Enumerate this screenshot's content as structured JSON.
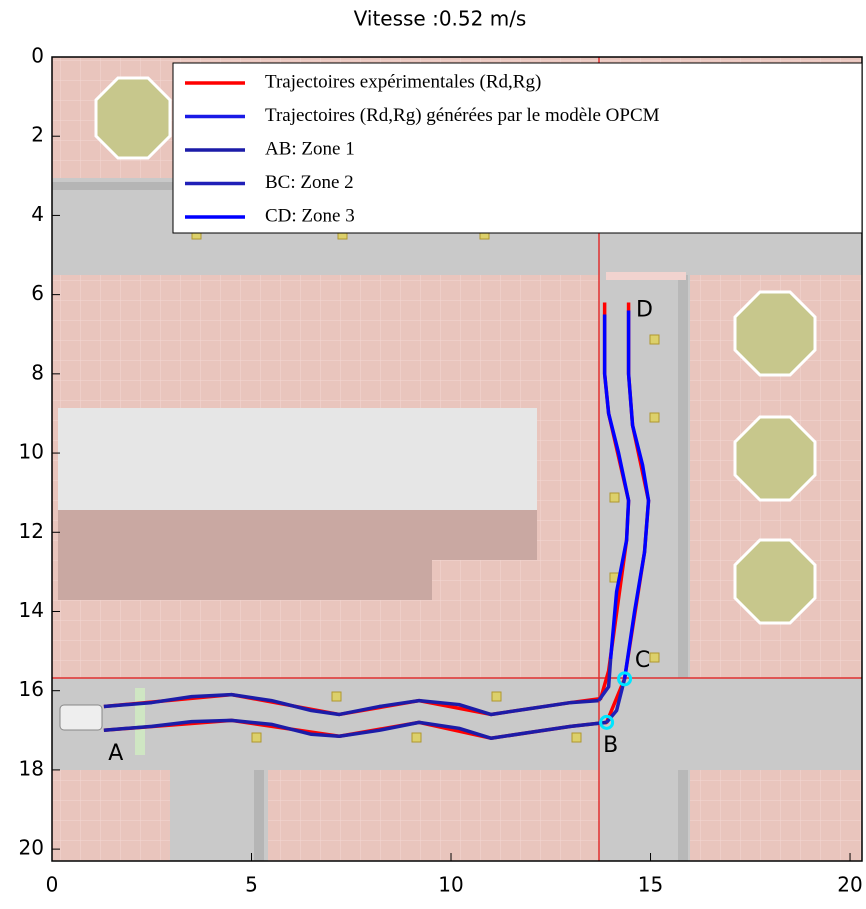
{
  "chart_data": {
    "type": "line",
    "title": "Vitesse :0.52 m/s",
    "xlim": [
      0,
      20.3
    ],
    "ylim": [
      0,
      20.3
    ],
    "y_inverted": true,
    "xticks": [
      0,
      5,
      10,
      15,
      20
    ],
    "yticks": [
      0,
      2,
      4,
      6,
      8,
      10,
      12,
      14,
      16,
      18,
      20
    ],
    "legend": "top-right",
    "series": [
      {
        "name": "Trajectoires expérimentales (Rd,Rg)",
        "color": "#ff0000",
        "lines": [
          {
            "x": [
              1.3,
              4.5,
              7.2,
              9.2,
              11.0,
              13.0,
              13.9,
              14.35,
              14.85,
              14.95,
              14.55,
              14.45,
              14.45
            ],
            "y": [
              17.0,
              16.75,
              17.15,
              16.8,
              17.2,
              16.9,
              16.8,
              15.7,
              12.5,
              11.2,
              9.3,
              8.0,
              6.2
            ]
          },
          {
            "x": [
              1.3,
              4.5,
              7.2,
              9.2,
              11.0,
              13.0,
              13.75,
              13.95,
              14.4,
              14.45,
              13.95,
              13.85,
              13.85
            ],
            "y": [
              16.4,
              16.1,
              16.6,
              16.25,
              16.6,
              16.3,
              16.2,
              15.5,
              12.2,
              11.2,
              9.0,
              8.0,
              6.2
            ]
          }
        ]
      },
      {
        "name": "Trajectoires (Rd,Rg) générées par le modèle OPCM",
        "color": "#1a1ae6"
      },
      {
        "name": "AB: Zone 1",
        "color": "#1c1ca8",
        "lines": [
          {
            "x": [
              1.3,
              2.5,
              3.5,
              4.5,
              5.5,
              6.5,
              7.2,
              8.2,
              9.2,
              10.2,
              11.0,
              12.0,
              13.0,
              13.9
            ],
            "y": [
              17.0,
              16.9,
              16.78,
              16.75,
              16.85,
              17.1,
              17.15,
              17.0,
              16.8,
              16.95,
              17.2,
              17.05,
              16.9,
              16.8
            ]
          },
          {
            "x": [
              1.3,
              2.5,
              3.5,
              4.5,
              5.5,
              6.5,
              7.2,
              8.2,
              9.2,
              10.2,
              11.0,
              12.0,
              13.0,
              13.7
            ],
            "y": [
              16.4,
              16.3,
              16.15,
              16.1,
              16.25,
              16.5,
              16.6,
              16.4,
              16.25,
              16.35,
              16.6,
              16.45,
              16.3,
              16.25
            ]
          }
        ]
      },
      {
        "name": "BC: Zone 2",
        "color": "#2020b8",
        "lines": [
          {
            "x": [
              13.9,
              14.15,
              14.35
            ],
            "y": [
              16.8,
              16.5,
              15.7
            ]
          },
          {
            "x": [
              13.7,
              13.95,
              14.0
            ],
            "y": [
              16.25,
              15.9,
              15.2
            ]
          }
        ]
      },
      {
        "name": "CD: Zone 3",
        "color": "#0000ff",
        "lines": [
          {
            "x": [
              14.35,
              14.6,
              14.85,
              14.95,
              14.8,
              14.55,
              14.45,
              14.45
            ],
            "y": [
              15.7,
              14.0,
              12.5,
              11.2,
              10.3,
              9.3,
              8.0,
              6.4
            ]
          },
          {
            "x": [
              14.0,
              14.15,
              14.4,
              14.45,
              14.2,
              13.95,
              13.85,
              13.85
            ],
            "y": [
              15.2,
              13.5,
              12.2,
              11.2,
              10.0,
              9.0,
              8.0,
              6.5
            ]
          }
        ]
      }
    ],
    "boundaries": [
      {
        "x": 13.9,
        "y": 16.8
      },
      {
        "x": 14.35,
        "y": 15.7
      }
    ],
    "annotations": [
      {
        "text": "A",
        "x": 1.6,
        "y": 17.6
      },
      {
        "text": "B",
        "x": 14.0,
        "y": 17.4
      },
      {
        "text": "C",
        "x": 14.8,
        "y": 15.25
      },
      {
        "text": "D",
        "x": 14.85,
        "y": 6.4
      }
    ]
  }
}
